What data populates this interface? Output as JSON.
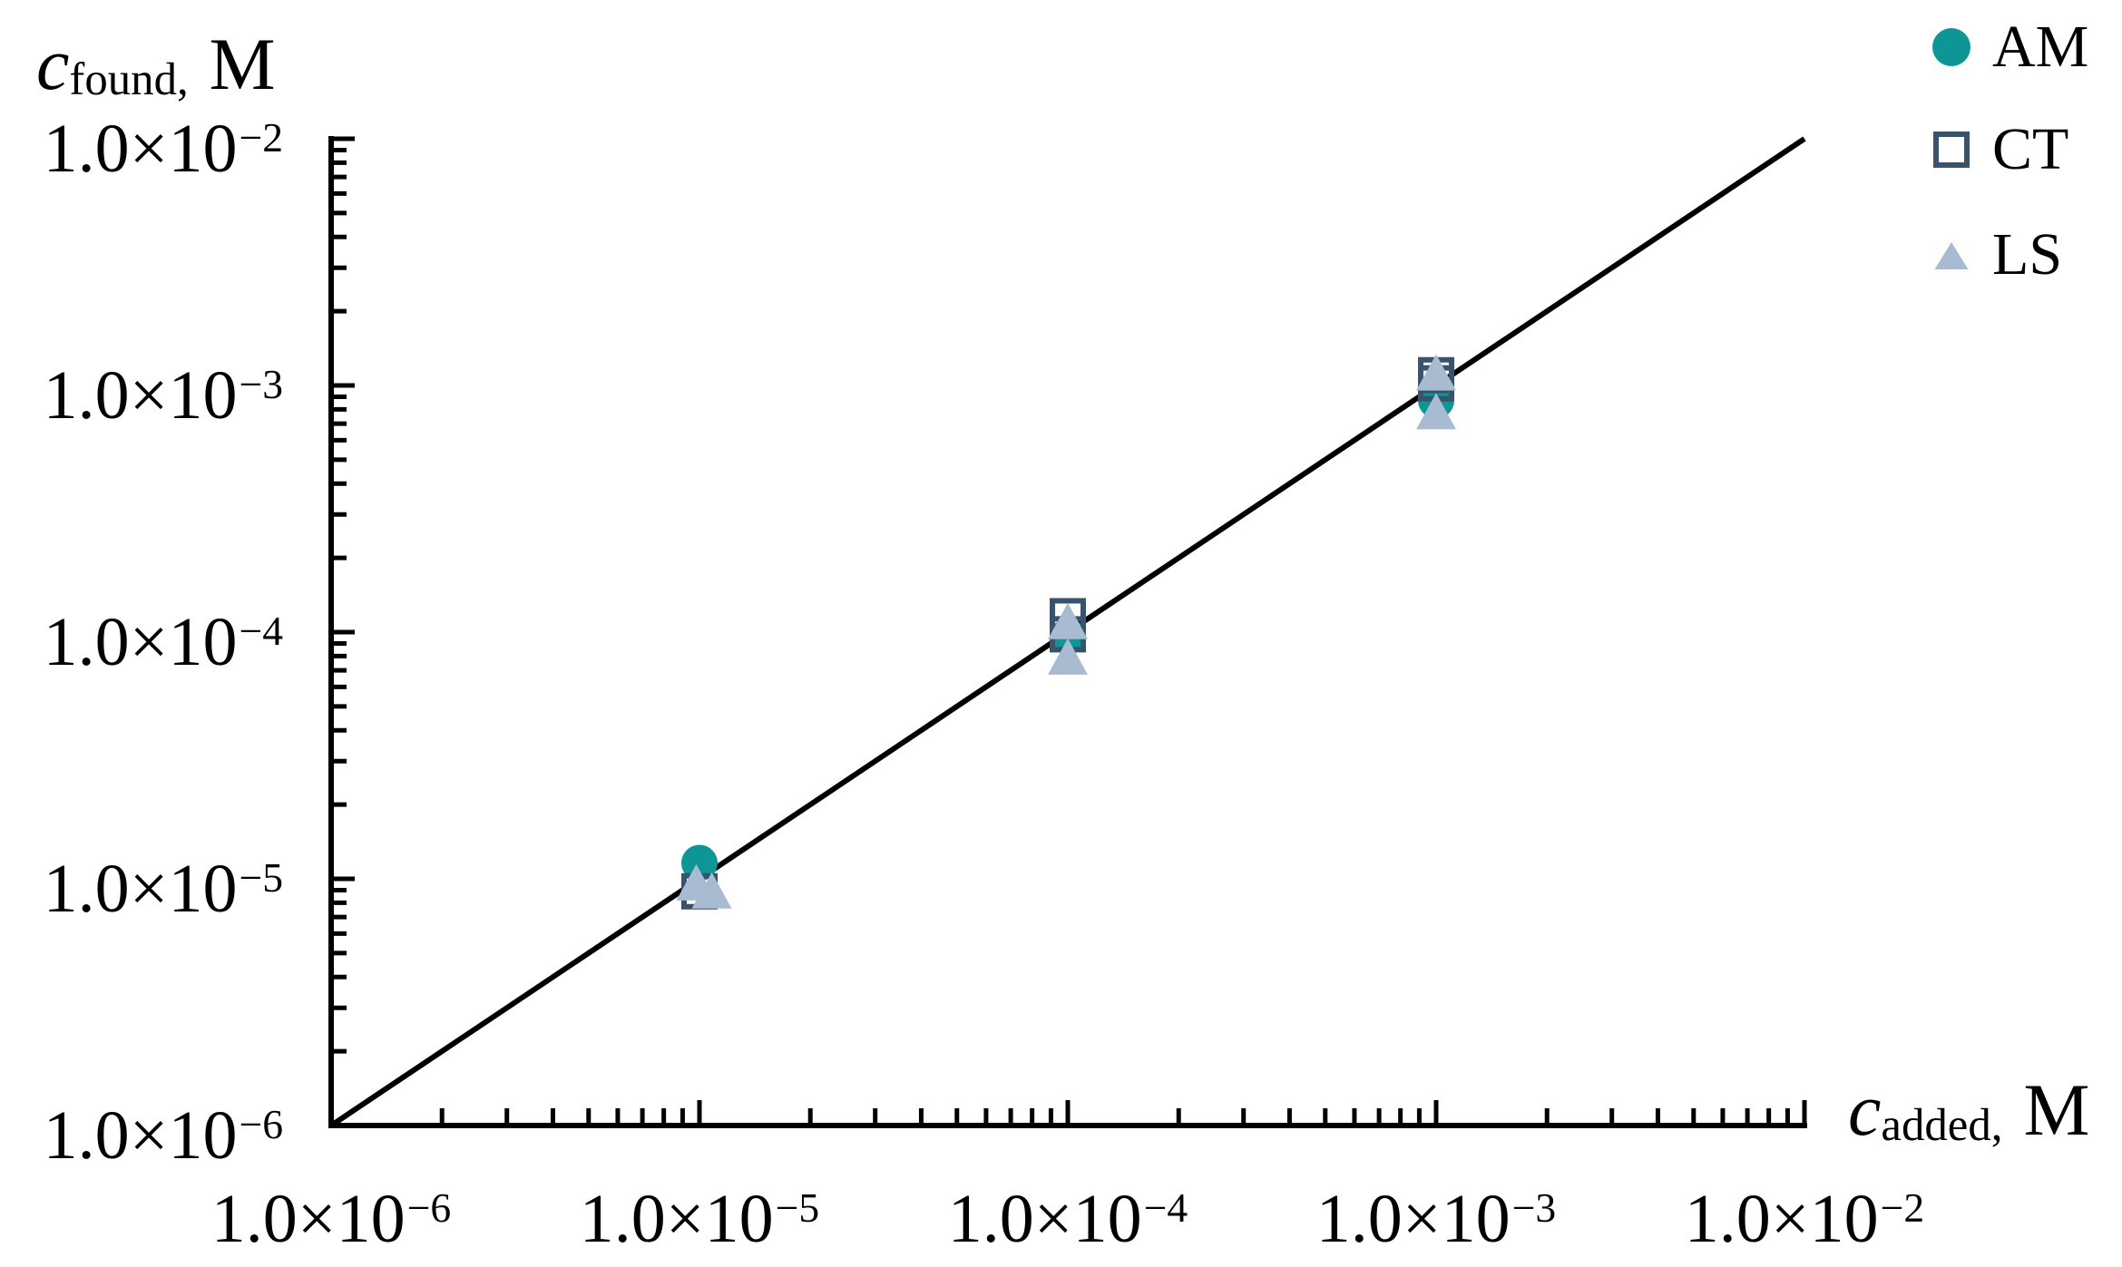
{
  "figure": {
    "y_axis": {
      "title": {
        "var": "c",
        "sub": "found,",
        "unit": "M"
      },
      "tick_labels": [
        {
          "m": "1.0×10",
          "e": "−6"
        },
        {
          "m": "1.0×10",
          "e": "−5"
        },
        {
          "m": "1.0×10",
          "e": "−4"
        },
        {
          "m": "1.0×10",
          "e": "−3"
        },
        {
          "m": "1.0×10",
          "e": "−2"
        }
      ]
    },
    "x_axis": {
      "title": {
        "var": "c",
        "sub": "added,",
        "unit": "M"
      },
      "tick_labels": [
        {
          "m": "1.0×10",
          "e": "−6"
        },
        {
          "m": "1.0×10",
          "e": "−5"
        },
        {
          "m": "1.0×10",
          "e": "−4"
        },
        {
          "m": "1.0×10",
          "e": "−3"
        },
        {
          "m": "1.0×10",
          "e": "−2"
        }
      ]
    },
    "legend": [
      {
        "label": "AM",
        "marker": "circle",
        "color": "#0E9696"
      },
      {
        "label": "CT",
        "marker": "square-open",
        "color": "#39536C"
      },
      {
        "label": "LS",
        "marker": "triangle",
        "color": "#A8BBD1"
      }
    ]
  },
  "chart_data": {
    "type": "scatter",
    "title": "",
    "xlabel": "c_added, M",
    "ylabel": "c_found, M",
    "x_scale": "log",
    "y_scale": "log",
    "x_range": [
      1e-06,
      0.01
    ],
    "y_range": [
      1e-06,
      0.01
    ],
    "grid": false,
    "legend_position": "top-right",
    "tick_values_x": [
      1e-06,
      1e-05,
      0.0001,
      0.001,
      0.01
    ],
    "tick_values_y": [
      1e-06,
      1e-05,
      0.0001,
      0.001,
      0.01
    ],
    "identity_line": {
      "from": 1e-06,
      "to": 0.01,
      "color": "#000000"
    },
    "series": [
      {
        "name": "AM",
        "marker": "circle",
        "color": "#0E9696",
        "points": [
          [
            1e-05,
            1.16e-05
          ],
          [
            0.0001,
            9.6e-05
          ],
          [
            0.001,
            0.00087
          ]
        ]
      },
      {
        "name": "CT",
        "marker": "square-open",
        "color": "#39536C",
        "points": [
          [
            1e-05,
            8.9e-06
          ],
          [
            0.0001,
            0.000116
          ],
          [
            0.0001,
            9.8e-05
          ],
          [
            0.001,
            0.0011
          ],
          [
            0.001,
            0.00102
          ]
        ]
      },
      {
        "name": "LS",
        "marker": "triangle",
        "color": "#A8BBD1",
        "points": [
          [
            9.8e-06,
            9.6e-06
          ],
          [
            1.08e-05,
            8.9e-06
          ],
          [
            0.0001,
            0.00011
          ],
          [
            0.0001,
            7.9e-05
          ],
          [
            0.001,
            0.00112
          ],
          [
            0.001,
            0.00078
          ]
        ]
      }
    ]
  }
}
